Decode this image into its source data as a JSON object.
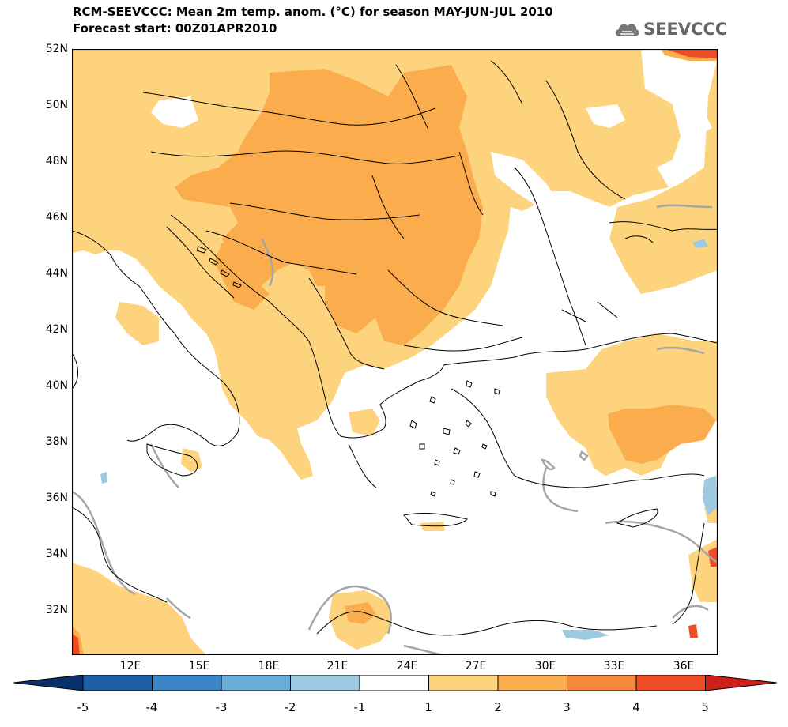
{
  "title": {
    "line1": "RCM-SEEVCCC: Mean 2m temp. anom. (°C) for season MAY-JUN-JUL 2010",
    "line2": "Forecast start: 00Z01APR2010"
  },
  "logo": {
    "text": "SEEVCCC",
    "icon": "cloud-icon"
  },
  "axes": {
    "y_labels": [
      "52N",
      "50N",
      "48N",
      "46N",
      "44N",
      "42N",
      "40N",
      "38N",
      "36N",
      "34N",
      "32N"
    ],
    "x_labels": [
      "12E",
      "15E",
      "18E",
      "21E",
      "24E",
      "27E",
      "30E",
      "33E",
      "36E"
    ]
  },
  "colorbar": {
    "labels": [
      "-5",
      "-4",
      "-3",
      "-2",
      "-1",
      "1",
      "2",
      "3",
      "4",
      "5"
    ],
    "colors": {
      "below_min": "#08306b",
      "c1": "#1f5fa6",
      "c2": "#3a86c6",
      "c3": "#6aaedc",
      "c4": "#9ecae1",
      "c5": "#ffffff",
      "c6": "#fdd37e",
      "c7": "#fbad4d",
      "c8": "#f7883b",
      "c9": "#ee4c26",
      "above_max": "#cf1f1b"
    }
  },
  "map_colors": {
    "anom_1_2": "#fdd37e",
    "anom_2_3": "#fbad4d",
    "anom_3_4": "#f7883b",
    "anom_4_5": "#ee4c26",
    "anom_neg": "#9ecae1",
    "coast": "#000000",
    "contour_zero": "#a6a6a6"
  }
}
